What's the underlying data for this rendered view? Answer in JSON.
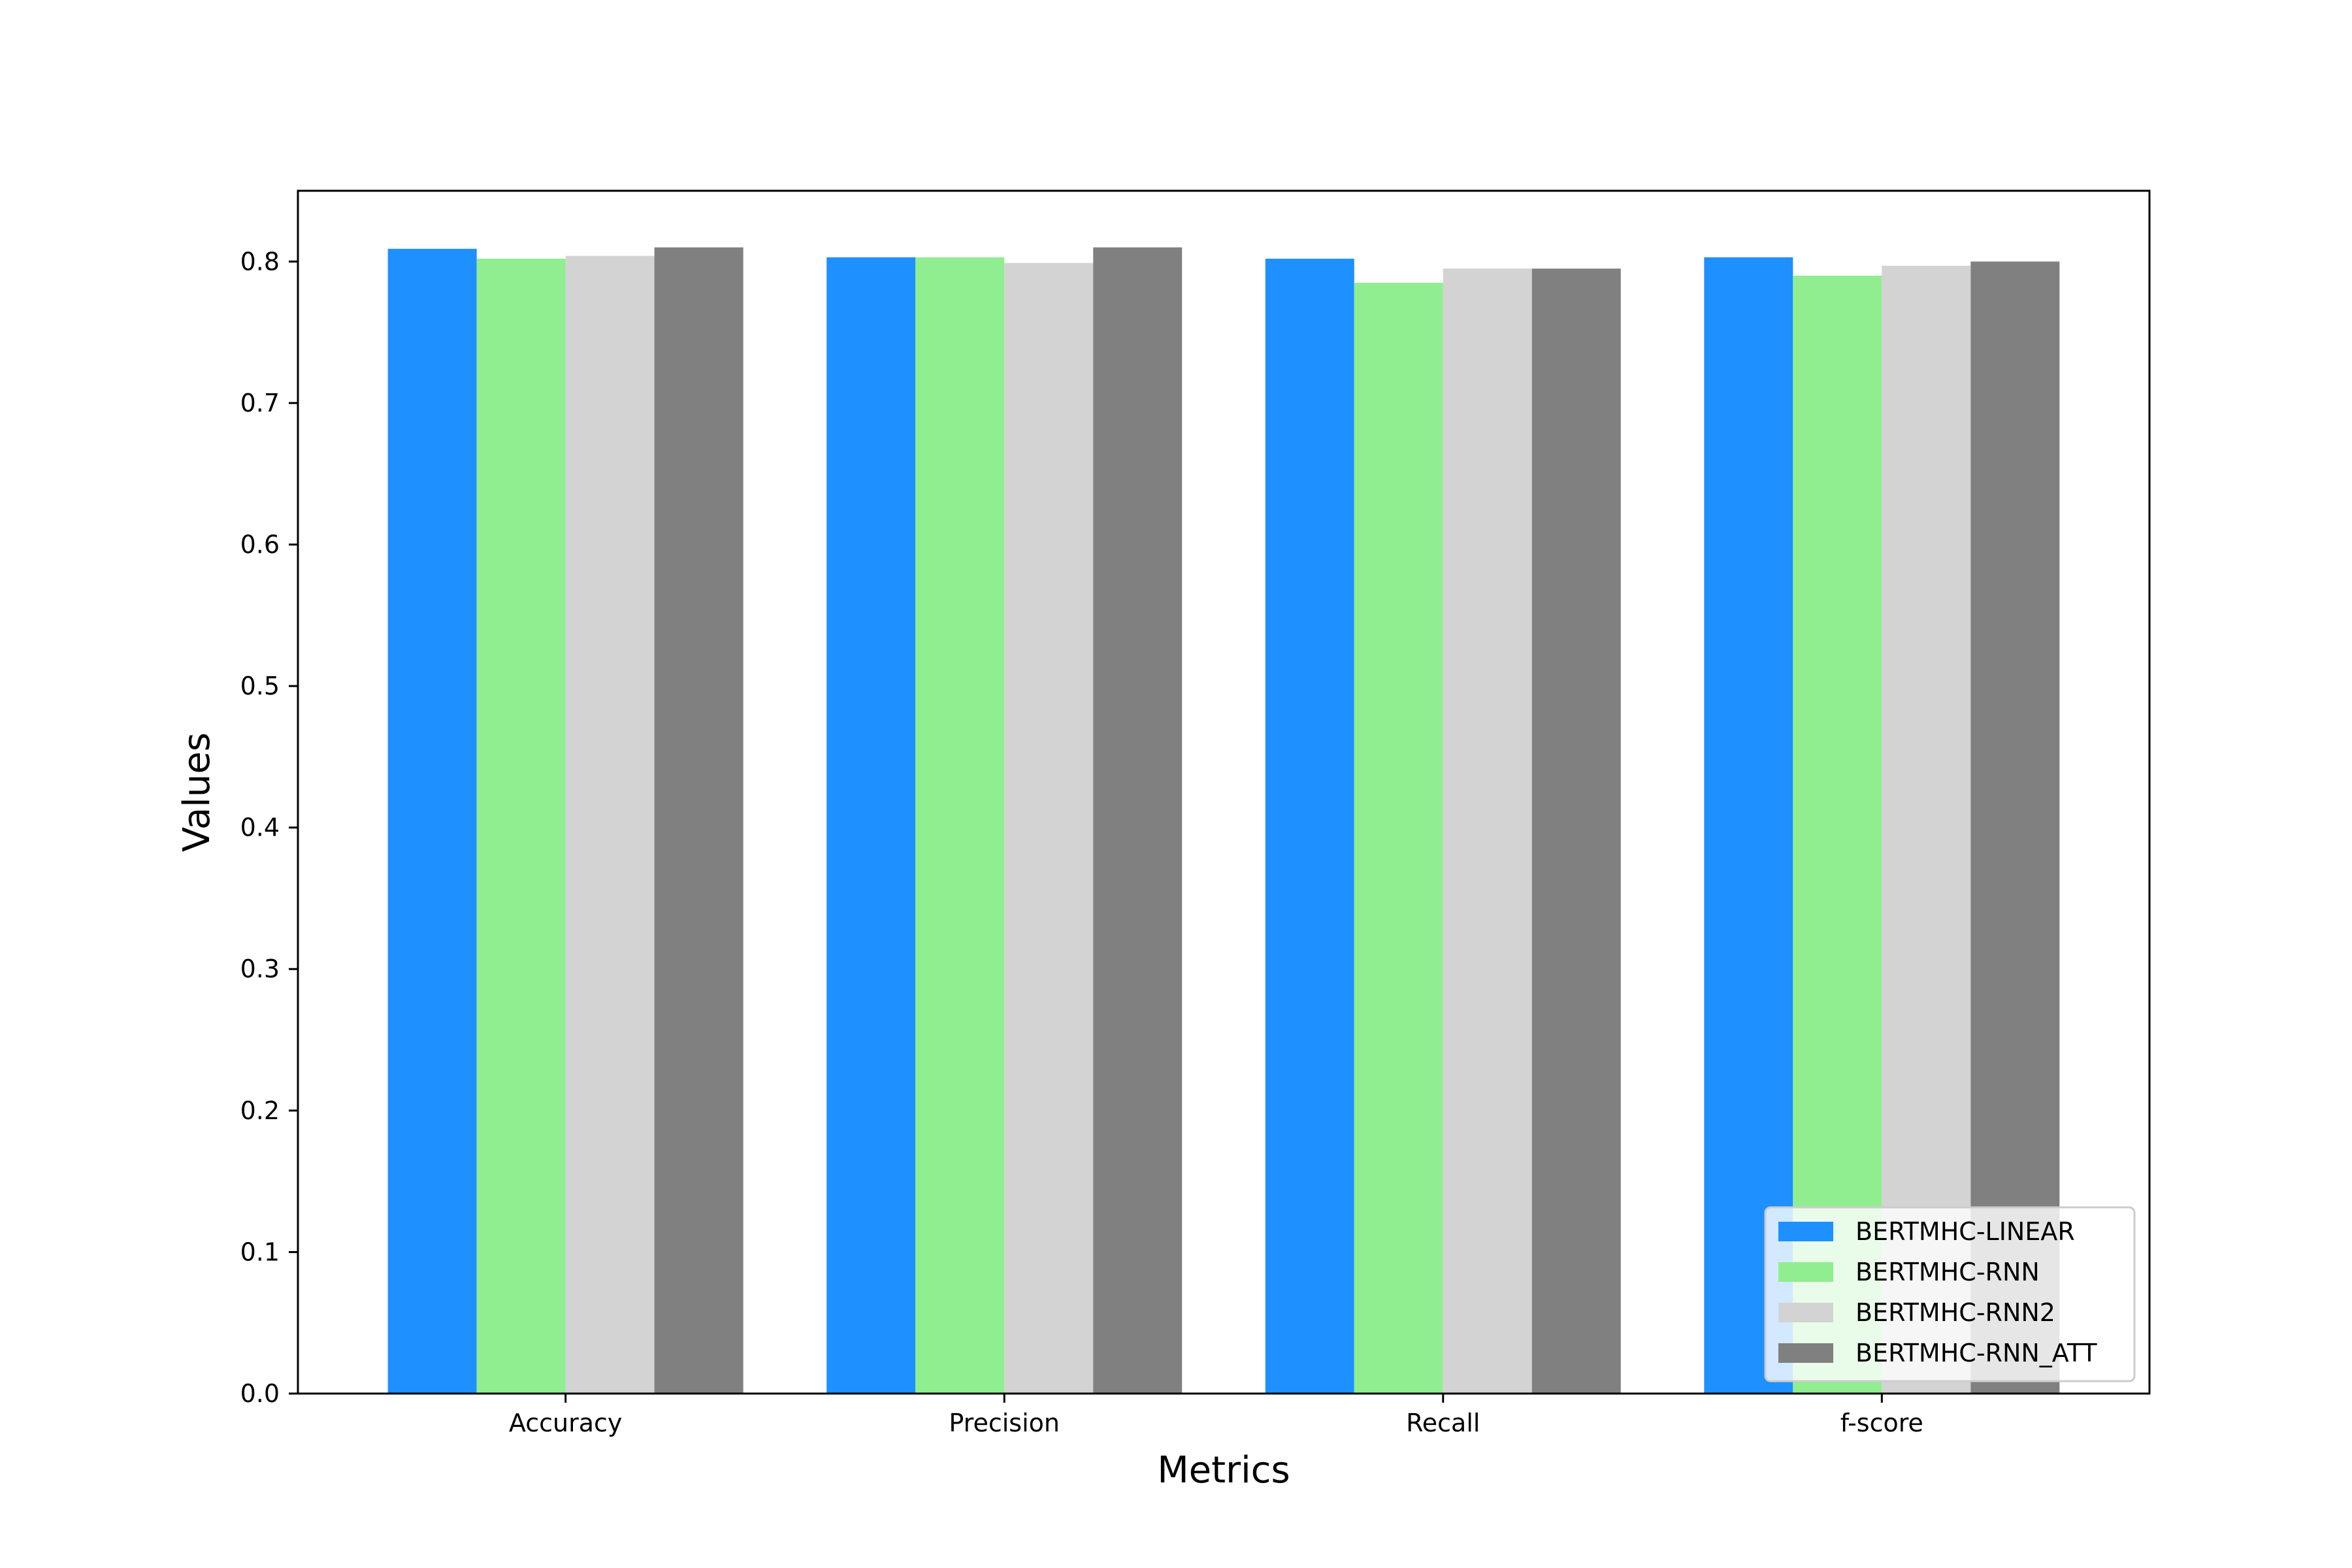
{
  "chart_data": {
    "type": "bar",
    "title": "",
    "xlabel": "Metrics",
    "ylabel": "Values",
    "categories": [
      "Accuracy",
      "Precision",
      "Recall",
      "f-score"
    ],
    "series": [
      {
        "name": "BERTMHC-LINEAR",
        "color": "#1e90ff",
        "values": [
          0.809,
          0.803,
          0.802,
          0.803
        ]
      },
      {
        "name": "BERTMHC-RNN",
        "color": "#90ee90",
        "values": [
          0.802,
          0.803,
          0.785,
          0.79
        ]
      },
      {
        "name": "BERTMHC-RNN2",
        "color": "#d3d3d3",
        "values": [
          0.804,
          0.799,
          0.795,
          0.797
        ]
      },
      {
        "name": "BERTMHC-RNN_ATT",
        "color": "#808080",
        "values": [
          0.81,
          0.81,
          0.795,
          0.8
        ]
      }
    ],
    "ylim": [
      0,
      0.85
    ],
    "yticks": [
      "0.0",
      "0.1",
      "0.2",
      "0.3",
      "0.4",
      "0.5",
      "0.6",
      "0.7",
      "0.8"
    ],
    "grid": false,
    "legend_position": "lower-right"
  }
}
